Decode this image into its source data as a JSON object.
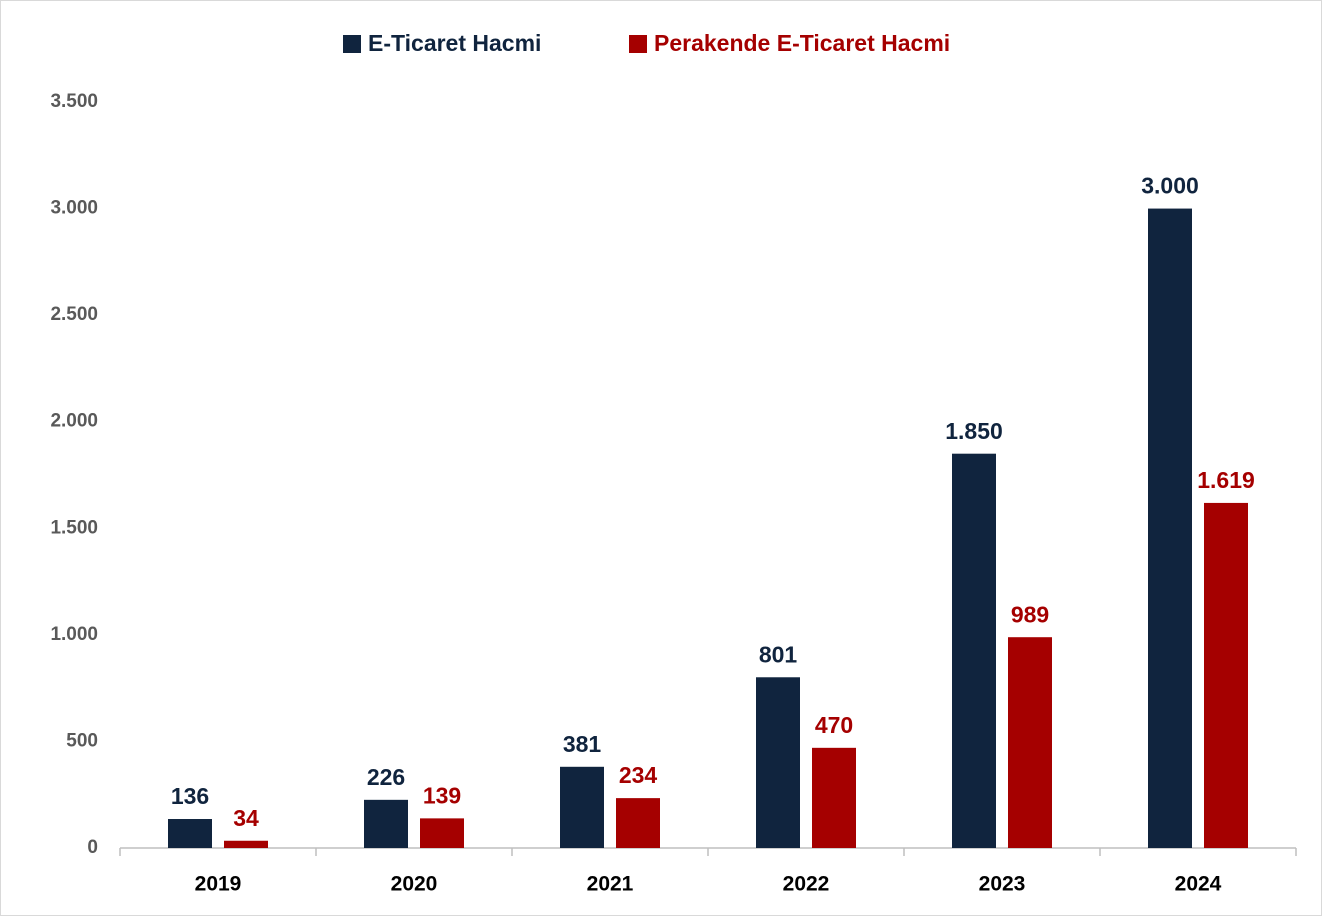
{
  "chart_data": {
    "type": "bar",
    "categories": [
      "2019",
      "2020",
      "2021",
      "2022",
      "2023",
      "2024"
    ],
    "series": [
      {
        "name": "E-Ticaret Hacmi",
        "color": "#10243e",
        "values": [
          136,
          226,
          381,
          801,
          1850,
          3000
        ],
        "value_labels": [
          "136",
          "226",
          "381",
          "801",
          "1.850",
          "3.000"
        ]
      },
      {
        "name": "Perakende E-Ticaret Hacmi",
        "color": "#a50000",
        "values": [
          34,
          139,
          234,
          470,
          989,
          1619
        ],
        "value_labels": [
          "34",
          "139",
          "234",
          "470",
          "989",
          "1.619"
        ]
      }
    ],
    "ylim": [
      0,
      3500
    ],
    "yticks": [
      0,
      500,
      {
        "value": 1000,
        "label": "1.000"
      },
      {
        "value": 1500,
        "label": "1.500"
      },
      {
        "value": 2000,
        "label": "2.000"
      },
      {
        "value": 2500,
        "label": "2.500"
      },
      {
        "value": 3000,
        "label": "3.000"
      },
      {
        "value": 3500,
        "label": "3.500"
      }
    ],
    "grid": false,
    "legend": "top"
  }
}
